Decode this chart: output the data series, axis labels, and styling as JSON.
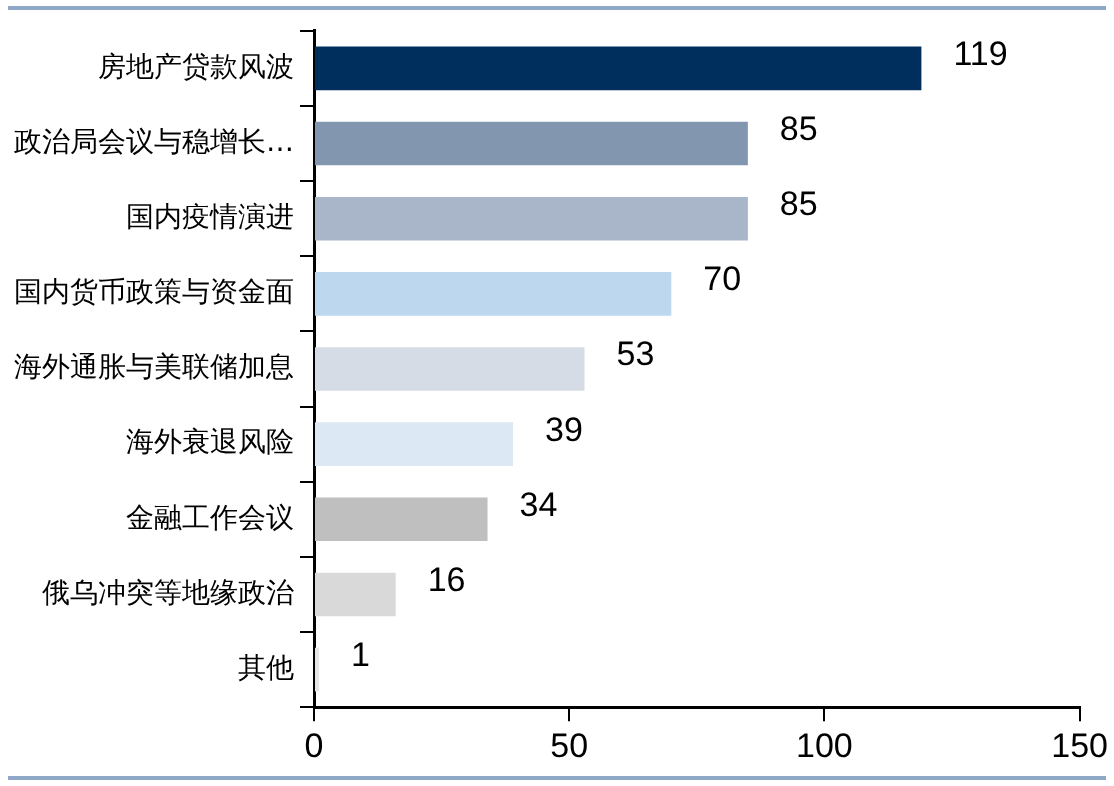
{
  "chart_data": {
    "type": "bar",
    "orientation": "horizontal",
    "categories": [
      "房地产贷款风波",
      "政治局会议与稳增长…",
      "国内疫情演进",
      "国内货币政策与资金面",
      "海外通胀与美联储加息",
      "海外衰退风险",
      "金融工作会议",
      "俄乌冲突等地缘政治",
      "其他"
    ],
    "values": [
      119,
      85,
      85,
      70,
      53,
      39,
      34,
      16,
      1
    ],
    "colors": [
      "#002f5e",
      "#8396b0",
      "#a9b5c8",
      "#bdd7ee",
      "#d6dce5",
      "#dde8f5",
      "#bfbfbf",
      "#d9d9d9",
      "#e6e6e6"
    ],
    "xlim": [
      0,
      150
    ],
    "xticks": [
      0,
      50,
      100,
      150
    ],
    "grid": false,
    "legend": false,
    "data_labels": true
  }
}
